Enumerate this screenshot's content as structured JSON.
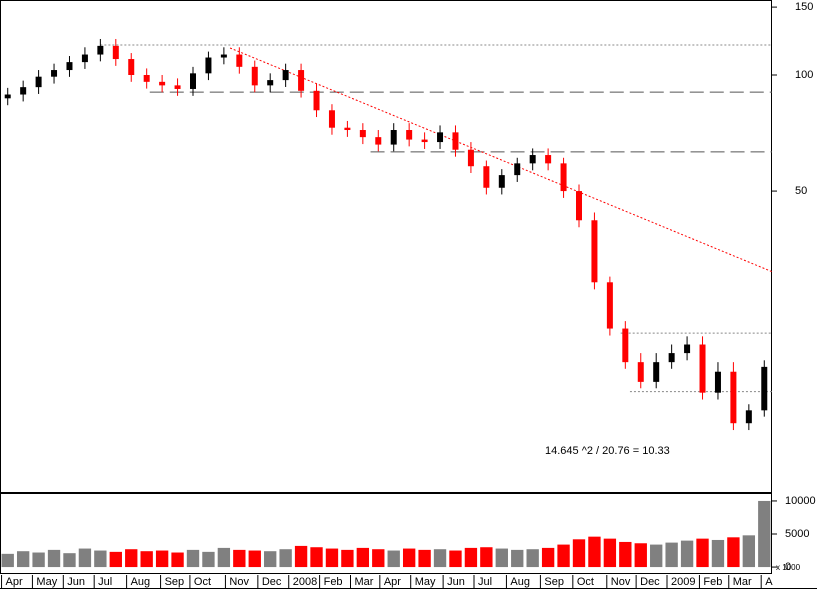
{
  "chart_data": {
    "type": "candlestick",
    "xlim": [
      0,
      50
    ],
    "xticks": [
      {
        "value": 0.1,
        "label": "Apr"
      },
      {
        "value": 2.1,
        "label": "May"
      },
      {
        "value": 4.1,
        "label": "Jun"
      },
      {
        "value": 6.1,
        "label": "Jul"
      },
      {
        "value": 8.2,
        "label": "Aug"
      },
      {
        "value": 10.4,
        "label": "Sep"
      },
      {
        "value": 12.3,
        "label": "Oct"
      },
      {
        "value": 14.6,
        "label": "Nov"
      },
      {
        "value": 16.7,
        "label": "Dec"
      },
      {
        "value": 18.7,
        "label": "2008"
      },
      {
        "value": 20.7,
        "label": "Feb"
      },
      {
        "value": 22.7,
        "label": "Mar"
      },
      {
        "value": 24.6,
        "label": "Apr"
      },
      {
        "value": 26.6,
        "label": "May"
      },
      {
        "value": 28.7,
        "label": "Jun"
      },
      {
        "value": 30.7,
        "label": "Jul"
      },
      {
        "value": 32.8,
        "label": "Aug"
      },
      {
        "value": 35.0,
        "label": "Sep"
      },
      {
        "value": 37.1,
        "label": "Oct"
      },
      {
        "value": 39.3,
        "label": "Nov"
      },
      {
        "value": 41.2,
        "label": "Dec"
      },
      {
        "value": 43.2,
        "label": "2009"
      },
      {
        "value": 45.3,
        "label": "Feb"
      },
      {
        "value": 47.2,
        "label": "Mar"
      },
      {
        "value": 49.3,
        "label": "A"
      }
    ],
    "ylim": [
      8.24,
      156.5
    ],
    "log_scale": true,
    "yticks": [
      50,
      100,
      150
    ],
    "up_color": "#000000",
    "down_color": "#ff0000",
    "open": [
      87,
      89,
      93,
      99,
      103,
      108,
      113,
      119,
      110,
      100,
      96,
      94,
      92,
      101,
      111,
      113,
      105,
      94,
      97,
      103,
      91,
      81,
      73,
      72,
      69,
      66,
      72,
      68,
      67,
      71,
      64,
      58,
      51,
      55,
      59,
      62,
      59,
      50,
      42,
      29,
      22,
      18,
      16,
      18,
      19,
      20,
      15,
      17,
      12.5,
      13.5
    ],
    "high": [
      92.6,
      96.7,
      103,
      107,
      112,
      118,
      124,
      124,
      114,
      104,
      100,
      98,
      105,
      115,
      118,
      118,
      109,
      101,
      107,
      107,
      95,
      84,
      76,
      75,
      72,
      75,
      75,
      71,
      74,
      74,
      67,
      60,
      57,
      61,
      64.5,
      64.5,
      61,
      52,
      44,
      30,
      23,
      19,
      19,
      20,
      21,
      21,
      18,
      18,
      14,
      18.2
    ],
    "low": [
      83.5,
      85.4,
      89.3,
      95,
      98.9,
      103.7,
      108.5,
      105.6,
      96,
      92.2,
      90.2,
      88.3,
      88.3,
      97,
      106.6,
      100.8,
      90.2,
      90.2,
      93.1,
      87.4,
      77.8,
      70,
      69.1,
      66.2,
      63.4,
      63.4,
      65.3,
      64.3,
      64.3,
      61.4,
      55.7,
      49,
      49,
      52.8,
      56.6,
      56.6,
      48,
      40.3,
      27.8,
      21.1,
      17.3,
      15.4,
      15.4,
      17.3,
      18.2,
      14.4,
      14.4,
      12,
      12,
      13
    ],
    "close": [
      89,
      93,
      99,
      103,
      108,
      113,
      119,
      110,
      100,
      96,
      94,
      92,
      101,
      111,
      113,
      105,
      94,
      97,
      103,
      91,
      81,
      73,
      72,
      69,
      66,
      72,
      68,
      67,
      71,
      64,
      58,
      51,
      55,
      59,
      62,
      59,
      50,
      42,
      29,
      22,
      18,
      16,
      18,
      19,
      20,
      15,
      17,
      12.5,
      13.5,
      17.5
    ],
    "hlines": [
      {
        "value": 119.6,
        "from": 6.5,
        "color": "#888888",
        "style": "dotted"
      },
      {
        "value": 90.3,
        "from": 9.7,
        "color": "#555555",
        "style": "dashed"
      },
      {
        "value": 63.2,
        "from": 24,
        "color": "#555555",
        "style": "dashed"
      },
      {
        "value": 21.4,
        "from": 40.2,
        "color": "#888888",
        "style": "dotted"
      },
      {
        "value": 15.1,
        "from": 40.8,
        "color": "#888888",
        "style": "dotted"
      }
    ],
    "trendline": {
      "x": [
        14.9,
        50
      ],
      "y": [
        117.5,
        30.9
      ],
      "color": "#ff0000"
    },
    "annotation": "14.645 ^2 / 20.76 = 10.33",
    "volume": {
      "values": [
        2000,
        2400,
        2200,
        2600,
        2100,
        2800,
        2500,
        2300,
        2700,
        2400,
        2500,
        2200,
        2600,
        2300,
        2900,
        2600,
        2500,
        2400,
        2700,
        3200,
        3000,
        2800,
        2600,
        2900,
        2700,
        2500,
        2800,
        2600,
        2700,
        2500,
        2900,
        3000,
        2800,
        2600,
        2700,
        2900,
        3400,
        4200,
        4600,
        4300,
        3800,
        3600,
        3400,
        3700,
        4000,
        4300,
        4100,
        4500,
        4800,
        10000
      ],
      "ylim": [
        -1200,
        10900
      ],
      "yticks": [
        0,
        5000,
        10000
      ],
      "unit_label": "x 1000",
      "up_color": "#808080",
      "down_color": "#ff0000"
    }
  }
}
